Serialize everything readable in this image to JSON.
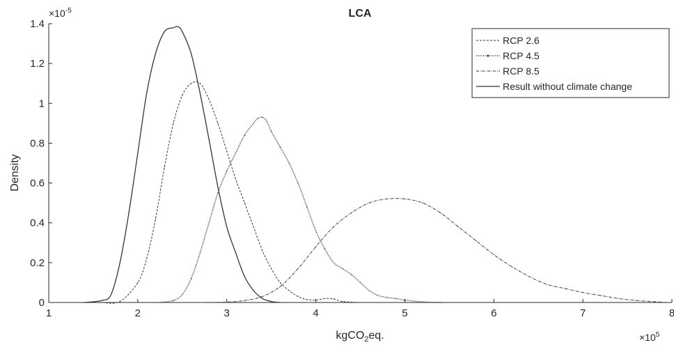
{
  "chart_data": {
    "type": "line",
    "title": "LCA",
    "xlabel": "kgCO",
    "xlabel_sub": "2",
    "xlabel_suffix": "eq.",
    "ylabel": "Density",
    "x_exponent_base": "×10",
    "x_exponent_power": "5",
    "y_exponent_base": "×10",
    "y_exponent_power": "-5",
    "xlim": [
      1,
      8
    ],
    "ylim": [
      0,
      1.4
    ],
    "xticks": [
      1,
      2,
      3,
      4,
      5,
      6,
      7,
      8
    ],
    "yticks": [
      0,
      0.2,
      0.4,
      0.6,
      0.8,
      1,
      1.2,
      1.4
    ],
    "ytick_labels": [
      "0",
      "0.2",
      "0.4",
      "0.6",
      "0.8",
      "1",
      "1.2",
      "1.4"
    ],
    "grid": false,
    "legend_position": "top-right",
    "series": [
      {
        "name": "RCP 2.6",
        "style": "dashed",
        "color": "#333333",
        "x": [
          1.6,
          1.8,
          2.0,
          2.1,
          2.2,
          2.3,
          2.4,
          2.5,
          2.6,
          2.7,
          2.8,
          2.9,
          3.0,
          3.1,
          3.2,
          3.3,
          3.4,
          3.5,
          3.6,
          3.7,
          3.8,
          3.9,
          4.0,
          4.1,
          4.2,
          4.3,
          4.5
        ],
        "y": [
          0.0,
          0.005,
          0.1,
          0.22,
          0.42,
          0.68,
          0.9,
          1.04,
          1.1,
          1.1,
          1.02,
          0.9,
          0.76,
          0.62,
          0.5,
          0.38,
          0.26,
          0.17,
          0.1,
          0.06,
          0.03,
          0.015,
          0.012,
          0.02,
          0.018,
          0.005,
          0.0
        ]
      },
      {
        "name": "RCP 4.5",
        "style": "dotted-markers",
        "color": "#333333",
        "x": [
          2.25,
          2.4,
          2.5,
          2.6,
          2.7,
          2.8,
          2.9,
          3.0,
          3.1,
          3.2,
          3.3,
          3.35,
          3.4,
          3.45,
          3.5,
          3.6,
          3.7,
          3.8,
          3.9,
          4.0,
          4.1,
          4.2,
          4.3,
          4.4,
          4.5,
          4.6,
          4.7,
          4.8,
          4.9,
          5.0,
          5.2,
          5.4
        ],
        "y": [
          0.0,
          0.01,
          0.04,
          0.12,
          0.25,
          0.4,
          0.55,
          0.66,
          0.75,
          0.84,
          0.9,
          0.925,
          0.93,
          0.91,
          0.86,
          0.78,
          0.7,
          0.6,
          0.48,
          0.36,
          0.27,
          0.2,
          0.17,
          0.14,
          0.1,
          0.06,
          0.035,
          0.025,
          0.02,
          0.012,
          0.003,
          0.0
        ]
      },
      {
        "name": "RCP 8.5",
        "style": "dash-dot",
        "color": "#333333",
        "x": [
          2.7,
          3.0,
          3.2,
          3.4,
          3.6,
          3.8,
          4.0,
          4.2,
          4.4,
          4.6,
          4.8,
          5.0,
          5.2,
          5.4,
          5.6,
          5.8,
          6.0,
          6.2,
          6.4,
          6.6,
          6.8,
          7.0,
          7.2,
          7.4,
          7.6,
          7.8,
          7.95
        ],
        "y": [
          0.0,
          0.002,
          0.01,
          0.03,
          0.08,
          0.17,
          0.28,
          0.38,
          0.45,
          0.5,
          0.52,
          0.52,
          0.5,
          0.45,
          0.38,
          0.31,
          0.24,
          0.18,
          0.13,
          0.09,
          0.07,
          0.05,
          0.035,
          0.02,
          0.01,
          0.004,
          0.0
        ]
      },
      {
        "name": "Result without climate change",
        "style": "solid",
        "color": "#333333",
        "x": [
          1.4,
          1.6,
          1.7,
          1.8,
          1.9,
          2.0,
          2.1,
          2.2,
          2.3,
          2.4,
          2.45,
          2.5,
          2.6,
          2.7,
          2.8,
          2.9,
          3.0,
          3.1,
          3.2,
          3.3,
          3.4,
          3.5,
          3.6
        ],
        "y": [
          0.0,
          0.01,
          0.04,
          0.2,
          0.45,
          0.75,
          1.05,
          1.25,
          1.36,
          1.38,
          1.385,
          1.36,
          1.25,
          1.05,
          0.82,
          0.58,
          0.38,
          0.25,
          0.13,
          0.06,
          0.02,
          0.005,
          0.0
        ]
      }
    ]
  }
}
